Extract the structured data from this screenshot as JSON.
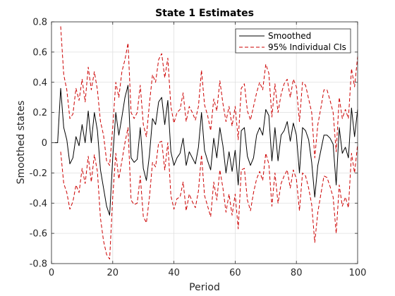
{
  "chart_data": {
    "type": "line",
    "title": "State 1 Estimates",
    "xlabel": "Period",
    "ylabel": "Smoothed states",
    "xlim": [
      0,
      100
    ],
    "ylim": [
      -0.8,
      0.8
    ],
    "xticks": [
      0,
      20,
      40,
      60,
      80,
      100
    ],
    "yticks": [
      -0.8,
      -0.6,
      -0.4,
      -0.2,
      0,
      0.2,
      0.4,
      0.6,
      0.8
    ],
    "xtick_labels": [
      "0",
      "20",
      "40",
      "60",
      "80",
      "100"
    ],
    "ytick_labels": [
      "-0.8",
      "-0.6",
      "-0.4",
      "-0.2",
      "0",
      "0.2",
      "0.4",
      "0.6",
      "0.8"
    ],
    "grid": true,
    "legend_position": "top-right",
    "series": [
      {
        "name": "Smoothed",
        "color": "#000000",
        "style": "solid",
        "x": [
          1,
          2,
          3,
          4,
          5,
          6,
          7,
          8,
          9,
          10,
          11,
          12,
          13,
          14,
          15,
          16,
          17,
          18,
          19,
          20,
          21,
          22,
          23,
          24,
          25,
          26,
          27,
          28,
          29,
          30,
          31,
          32,
          33,
          34,
          35,
          36,
          37,
          38,
          39,
          40,
          41,
          42,
          43,
          44,
          45,
          46,
          47,
          48,
          49,
          50,
          51,
          52,
          53,
          54,
          55,
          56,
          57,
          58,
          59,
          60,
          61,
          62,
          63,
          64,
          65,
          66,
          67,
          68,
          69,
          70,
          71,
          72,
          73,
          74,
          75,
          76,
          77,
          78,
          79,
          80,
          81,
          82,
          83,
          84,
          85,
          86,
          87,
          88,
          89,
          90,
          91,
          92,
          93,
          94,
          95,
          96,
          97,
          98,
          99,
          100
        ],
        "y": [
          0,
          0,
          0.36,
          0.1,
          0.02,
          -0.14,
          -0.1,
          0.04,
          -0.02,
          0.12,
          0,
          0.21,
          0,
          0.2,
          0.08,
          -0.18,
          -0.3,
          -0.42,
          -0.48,
          -0.1,
          0.2,
          0.05,
          0.17,
          0.3,
          0.38,
          -0.1,
          -0.13,
          -0.11,
          0.1,
          -0.17,
          -0.25,
          -0.08,
          0.16,
          0.12,
          0.27,
          0.3,
          0.12,
          0.28,
          -0.06,
          -0.15,
          -0.1,
          -0.07,
          0.03,
          -0.15,
          -0.06,
          -0.1,
          -0.14,
          -0.03,
          0.2,
          -0.05,
          -0.12,
          -0.18,
          0.03,
          -0.1,
          0.1,
          -0.02,
          -0.2,
          -0.06,
          -0.19,
          -0.05,
          -0.28,
          0.08,
          0.1,
          -0.09,
          -0.15,
          -0.1,
          0.05,
          0.1,
          0.05,
          0.22,
          0.18,
          -0.12,
          0.1,
          -0.12,
          0.05,
          0.08,
          0.14,
          0.01,
          0.13,
          0.05,
          -0.2,
          0.1,
          0.08,
          0.02,
          -0.13,
          -0.36,
          -0.15,
          -0.05,
          0.05,
          0.05,
          0.03,
          -0.01,
          -0.28,
          0.1,
          -0.07,
          -0.03,
          -0.1,
          0.23,
          0.04,
          0.22
        ]
      },
      {
        "name": "95% Individual CIs",
        "color": "#cc0000",
        "style": "dashed",
        "x": [
          3,
          4,
          5,
          6,
          7,
          8,
          9,
          10,
          11,
          12,
          13,
          14,
          15,
          16,
          17,
          18,
          19,
          20,
          21,
          22,
          23,
          24,
          25,
          26,
          27,
          28,
          29,
          30,
          31,
          32,
          33,
          34,
          35,
          36,
          37,
          38,
          39,
          40,
          41,
          42,
          43,
          44,
          45,
          46,
          47,
          48,
          49,
          50,
          51,
          52,
          53,
          54,
          55,
          56,
          57,
          58,
          59,
          60,
          61,
          62,
          63,
          64,
          65,
          66,
          67,
          68,
          69,
          70,
          71,
          72,
          73,
          74,
          75,
          76,
          77,
          78,
          79,
          80,
          81,
          82,
          83,
          84,
          85,
          86,
          87,
          88,
          89,
          90,
          91,
          92,
          93,
          94,
          95,
          96,
          97,
          98,
          99,
          100
        ],
        "y": [
          0.77,
          0.45,
          0.35,
          0.16,
          0.19,
          0.36,
          0.28,
          0.42,
          0.27,
          0.5,
          0.35,
          0.47,
          0.35,
          0.14,
          0.05,
          -0.12,
          -0.15,
          0.1,
          0.4,
          0.3,
          0.47,
          0.55,
          0.66,
          0.2,
          0.16,
          0.2,
          0.38,
          0.12,
          0.04,
          0.26,
          0.45,
          0.4,
          0.55,
          0.59,
          0.43,
          0.56,
          0.24,
          0.13,
          0.2,
          0.22,
          0.33,
          0.14,
          0.24,
          0.2,
          0.15,
          0.24,
          0.48,
          0.25,
          0.18,
          0.08,
          0.29,
          0.21,
          0.41,
          0.26,
          0.14,
          0.24,
          0.11,
          0.24,
          0.02,
          0.36,
          0.39,
          0.21,
          0.15,
          0.24,
          0.33,
          0.4,
          0.35,
          0.52,
          0.46,
          0.17,
          0.39,
          0.2,
          0.32,
          0.39,
          0.42,
          0.3,
          0.42,
          0.37,
          0.14,
          0.4,
          0.38,
          0.29,
          0.2,
          -0.1,
          0.12,
          0.23,
          0.35,
          0.35,
          0.28,
          0.2,
          -0.06,
          0.3,
          0.16,
          0.22,
          0.16,
          0.49,
          0.37,
          0.57
        ]
      },
      {
        "name": "95% Individual CIs",
        "color": "#cc0000",
        "style": "dashed",
        "x": [
          3,
          4,
          5,
          6,
          7,
          8,
          9,
          10,
          11,
          12,
          13,
          14,
          15,
          16,
          17,
          18,
          19,
          20,
          21,
          22,
          23,
          24,
          25,
          26,
          27,
          28,
          29,
          30,
          31,
          32,
          33,
          34,
          35,
          36,
          37,
          38,
          39,
          40,
          41,
          42,
          43,
          44,
          45,
          46,
          47,
          48,
          49,
          50,
          51,
          52,
          53,
          54,
          55,
          56,
          57,
          58,
          59,
          60,
          61,
          62,
          63,
          64,
          65,
          66,
          67,
          68,
          69,
          70,
          71,
          72,
          73,
          74,
          75,
          76,
          77,
          78,
          79,
          80,
          81,
          82,
          83,
          84,
          85,
          86,
          87,
          88,
          89,
          90,
          91,
          92,
          93,
          94,
          95,
          96,
          97,
          98,
          99,
          100
        ],
        "y": [
          -0.06,
          -0.27,
          -0.33,
          -0.44,
          -0.39,
          -0.28,
          -0.33,
          -0.17,
          -0.27,
          -0.09,
          -0.26,
          -0.08,
          -0.19,
          -0.5,
          -0.65,
          -0.74,
          -0.77,
          -0.36,
          -0.07,
          -0.24,
          -0.12,
          0,
          0.1,
          -0.38,
          -0.41,
          -0.4,
          -0.22,
          -0.49,
          -0.53,
          -0.36,
          -0.13,
          -0.16,
          0,
          0.01,
          -0.18,
          0,
          -0.35,
          -0.44,
          -0.37,
          -0.36,
          -0.26,
          -0.45,
          -0.34,
          -0.39,
          -0.43,
          -0.32,
          -0.08,
          -0.35,
          -0.42,
          -0.49,
          -0.26,
          -0.38,
          -0.18,
          -0.3,
          -0.46,
          -0.34,
          -0.48,
          -0.34,
          -0.57,
          -0.18,
          -0.17,
          -0.38,
          -0.45,
          -0.33,
          -0.24,
          -0.19,
          -0.25,
          -0.07,
          -0.14,
          -0.42,
          -0.2,
          -0.4,
          -0.27,
          -0.22,
          -0.18,
          -0.3,
          -0.18,
          -0.24,
          -0.45,
          -0.2,
          -0.22,
          -0.3,
          -0.41,
          -0.66,
          -0.46,
          -0.34,
          -0.22,
          -0.23,
          -0.29,
          -0.36,
          -0.6,
          -0.28,
          -0.42,
          -0.36,
          -0.43,
          -0.07,
          -0.2,
          -0.01
        ]
      }
    ]
  }
}
